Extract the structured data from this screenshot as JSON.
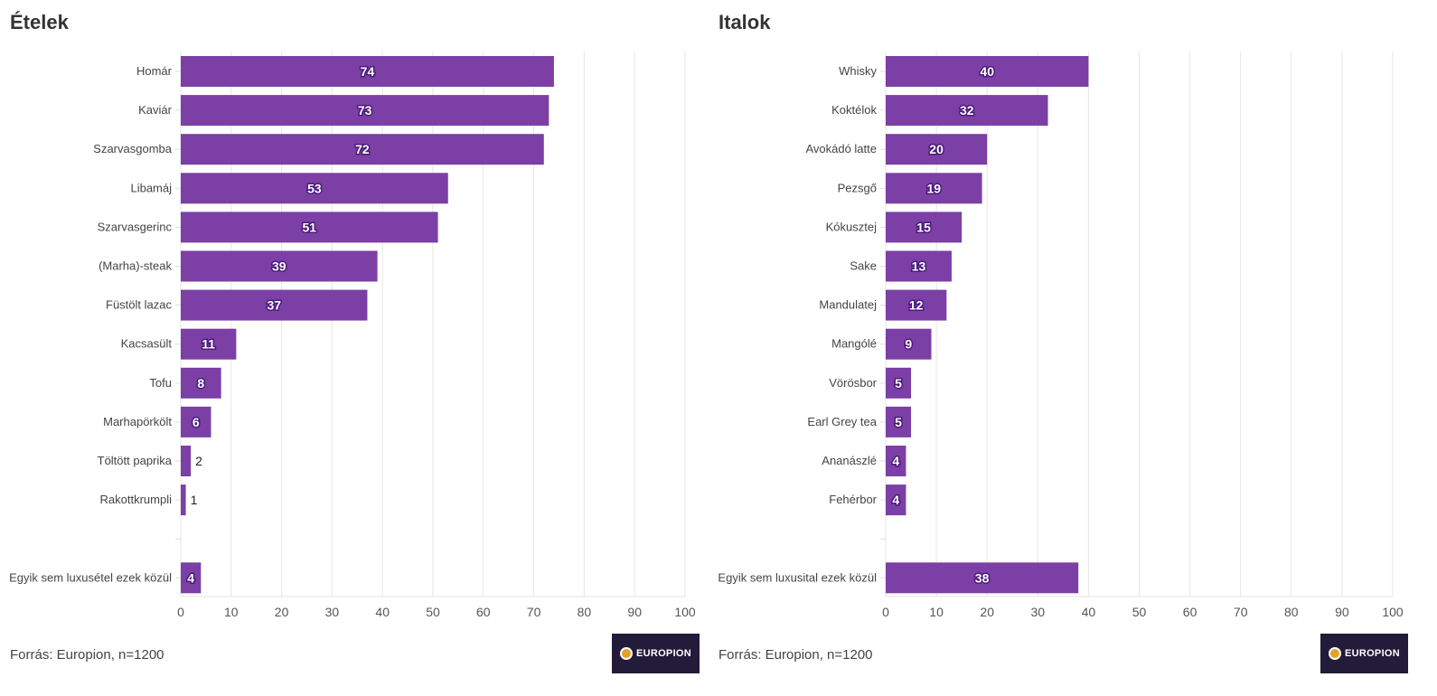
{
  "chart_data": [
    {
      "type": "bar",
      "orientation": "horizontal",
      "title": "Ételek",
      "categories": [
        "Homár",
        "Kaviár",
        "Szarvasgomba",
        "Libamáj",
        "Szarvasgerinc",
        "(Marha)-steak",
        "Füstölt lazac",
        "Kacsasült",
        "Tofu",
        "Marhapörkölt",
        "Töltött paprika",
        "Rakottkrumpli",
        "",
        "Egyik sem luxusétel ezek közül"
      ],
      "values": [
        74,
        73,
        72,
        53,
        51,
        39,
        37,
        11,
        8,
        6,
        2,
        1,
        null,
        4
      ],
      "xlim": [
        0,
        100
      ],
      "xticks": [
        0,
        10,
        20,
        30,
        40,
        50,
        60,
        70,
        80,
        90,
        100
      ],
      "grid": true,
      "data_labels": true,
      "bar_color": "#7b3fa5",
      "source": "Forrás: Europion, n=1200"
    },
    {
      "type": "bar",
      "orientation": "horizontal",
      "title": "Italok",
      "categories": [
        "Whisky",
        "Koktélok",
        "Avokádó latte",
        "Pezsgő",
        "Kókusztej",
        "Sake",
        "Mandulatej",
        "Mangólé",
        "Vörösbor",
        "Earl Grey tea",
        "Ananászlé",
        "Fehérbor",
        "",
        "Egyik sem luxusital ezek közül"
      ],
      "values": [
        40,
        32,
        20,
        19,
        15,
        13,
        12,
        9,
        5,
        5,
        4,
        4,
        null,
        38
      ],
      "xlim": [
        0,
        100
      ],
      "xticks": [
        0,
        10,
        20,
        30,
        40,
        50,
        60,
        70,
        80,
        90,
        100
      ],
      "grid": true,
      "data_labels": true,
      "bar_color": "#7b3fa5",
      "source": "Forrás: Europion, n=1200"
    }
  ],
  "logo": {
    "text": "EUROPION"
  }
}
